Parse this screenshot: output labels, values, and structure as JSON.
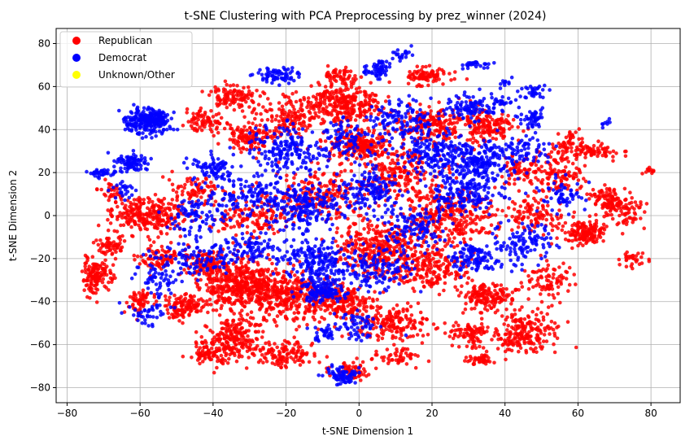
{
  "chart_data": {
    "type": "scatter",
    "title": "t-SNE Clustering with PCA Preprocessing by prez_winner (2024)",
    "xlabel": "t-SNE Dimension 1",
    "ylabel": "t-SNE Dimension 2",
    "xlim": [
      -83,
      88
    ],
    "ylim": [
      -87,
      87
    ],
    "xticks": [
      -80,
      -60,
      -40,
      -20,
      0,
      20,
      40,
      60,
      80
    ],
    "yticks": [
      -80,
      -60,
      -40,
      -20,
      0,
      20,
      40,
      60,
      80
    ],
    "grid": true,
    "legend_position": "top-left",
    "series": [
      {
        "name": "Republican",
        "color": "#ff0000",
        "clusters": [
          {
            "cx": -33,
            "cy": -32,
            "sx": 5,
            "sy": 6,
            "n": 420
          },
          {
            "cx": -35,
            "cy": -58,
            "sx": 4,
            "sy": 5,
            "n": 220
          },
          {
            "cx": -42,
            "cy": -22,
            "sx": 3,
            "sy": 3,
            "n": 120
          },
          {
            "cx": -48,
            "cy": -42,
            "sx": 3,
            "sy": 3,
            "n": 120
          },
          {
            "cx": -58,
            "cy": 0,
            "sx": 5,
            "sy": 4,
            "n": 260
          },
          {
            "cx": -72,
            "cy": -28,
            "sx": 2,
            "sy": 4,
            "n": 140
          },
          {
            "cx": -68,
            "cy": -14,
            "sx": 2,
            "sy": 2,
            "n": 60
          },
          {
            "cx": -42,
            "cy": -64,
            "sx": 2,
            "sy": 2,
            "n": 60
          },
          {
            "cx": -30,
            "cy": 36,
            "sx": 3,
            "sy": 3,
            "n": 120
          },
          {
            "cx": -34,
            "cy": 55,
            "sx": 4,
            "sy": 3,
            "n": 110
          },
          {
            "cx": -42,
            "cy": 44,
            "sx": 3,
            "sy": 3,
            "n": 80
          },
          {
            "cx": -20,
            "cy": 45,
            "sx": 4,
            "sy": 5,
            "n": 140
          },
          {
            "cx": -20,
            "cy": -38,
            "sx": 6,
            "sy": 6,
            "n": 320
          },
          {
            "cx": -20,
            "cy": -64,
            "sx": 4,
            "sy": 3,
            "n": 120
          },
          {
            "cx": -4,
            "cy": 52,
            "sx": 5,
            "sy": 5,
            "n": 300
          },
          {
            "cx": 0,
            "cy": 33,
            "sx": 4,
            "sy": 3,
            "n": 200
          },
          {
            "cx": -10,
            "cy": 10,
            "sx": 6,
            "sy": 6,
            "n": 200
          },
          {
            "cx": 5,
            "cy": -15,
            "sx": 6,
            "sy": 6,
            "n": 330
          },
          {
            "cx": -5,
            "cy": -40,
            "sx": 5,
            "sy": 4,
            "n": 200
          },
          {
            "cx": 10,
            "cy": -50,
            "sx": 5,
            "sy": 4,
            "n": 160
          },
          {
            "cx": 12,
            "cy": 20,
            "sx": 5,
            "sy": 6,
            "n": 200
          },
          {
            "cx": 18,
            "cy": 65,
            "sx": 3,
            "sy": 2,
            "n": 90
          },
          {
            "cx": 20,
            "cy": 42,
            "sx": 5,
            "sy": 5,
            "n": 200
          },
          {
            "cx": 25,
            "cy": 0,
            "sx": 6,
            "sy": 6,
            "n": 300
          },
          {
            "cx": 20,
            "cy": -25,
            "sx": 5,
            "sy": 5,
            "n": 200
          },
          {
            "cx": 35,
            "cy": -38,
            "sx": 4,
            "sy": 3,
            "n": 160
          },
          {
            "cx": 35,
            "cy": 42,
            "sx": 4,
            "sy": 4,
            "n": 150
          },
          {
            "cx": 45,
            "cy": -55,
            "sx": 5,
            "sy": 5,
            "n": 220
          },
          {
            "cx": 30,
            "cy": -55,
            "sx": 3,
            "sy": 3,
            "n": 80
          },
          {
            "cx": 33,
            "cy": -67,
            "sx": 2,
            "sy": 1,
            "n": 40
          },
          {
            "cx": 55,
            "cy": 20,
            "sx": 3,
            "sy": 5,
            "n": 110
          },
          {
            "cx": 62,
            "cy": -8,
            "sx": 3,
            "sy": 3,
            "n": 150
          },
          {
            "cx": 68,
            "cy": 8,
            "sx": 3,
            "sy": 3,
            "n": 70
          },
          {
            "cx": 72,
            "cy": 3,
            "sx": 3,
            "sy": 4,
            "n": 90
          },
          {
            "cx": 65,
            "cy": 30,
            "sx": 3,
            "sy": 2,
            "n": 60
          },
          {
            "cx": 52,
            "cy": -30,
            "sx": 3,
            "sy": 4,
            "n": 80
          },
          {
            "cx": 45,
            "cy": 20,
            "sx": 3,
            "sy": 4,
            "n": 80
          },
          {
            "cx": 75,
            "cy": -20,
            "sx": 2,
            "sy": 2,
            "n": 30
          },
          {
            "cx": 80,
            "cy": 20,
            "sx": 1,
            "sy": 1,
            "n": 12
          },
          {
            "cx": -45,
            "cy": 12,
            "sx": 3,
            "sy": 3,
            "n": 70
          },
          {
            "cx": -55,
            "cy": -20,
            "sx": 3,
            "sy": 3,
            "n": 80
          },
          {
            "cx": -60,
            "cy": -40,
            "sx": 2,
            "sy": 3,
            "n": 60
          },
          {
            "cx": -30,
            "cy": 0,
            "sx": 5,
            "sy": 5,
            "n": 140
          },
          {
            "cx": -2,
            "cy": -72,
            "sx": 3,
            "sy": 2,
            "n": 60
          },
          {
            "cx": -5,
            "cy": 65,
            "sx": 3,
            "sy": 2,
            "n": 50
          },
          {
            "cx": 48,
            "cy": 0,
            "sx": 4,
            "sy": 4,
            "n": 100
          },
          {
            "cx": 58,
            "cy": 33,
            "sx": 3,
            "sy": 3,
            "n": 60
          },
          {
            "cx": -68,
            "cy": 12,
            "sx": 2,
            "sy": 2,
            "n": 30
          },
          {
            "cx": 10,
            "cy": -65,
            "sx": 3,
            "sy": 2,
            "n": 50
          }
        ]
      },
      {
        "name": "Democrat",
        "color": "#0000ff",
        "clusters": [
          {
            "cx": -58,
            "cy": 44,
            "sx": 3,
            "sy": 3,
            "n": 260
          },
          {
            "cx": -62,
            "cy": 25,
            "sx": 2,
            "sy": 2,
            "n": 90
          },
          {
            "cx": -70,
            "cy": 20,
            "sx": 2,
            "sy": 1,
            "n": 40
          },
          {
            "cx": -40,
            "cy": 22,
            "sx": 3,
            "sy": 3,
            "n": 80
          },
          {
            "cx": -45,
            "cy": 0,
            "sx": 4,
            "sy": 5,
            "n": 90
          },
          {
            "cx": -45,
            "cy": -20,
            "sx": 5,
            "sy": 4,
            "n": 100
          },
          {
            "cx": -22,
            "cy": 65,
            "sx": 3,
            "sy": 2,
            "n": 70
          },
          {
            "cx": -20,
            "cy": 30,
            "sx": 5,
            "sy": 6,
            "n": 180
          },
          {
            "cx": -15,
            "cy": 5,
            "sx": 5,
            "sy": 5,
            "n": 190
          },
          {
            "cx": -12,
            "cy": -20,
            "sx": 5,
            "sy": 5,
            "n": 200
          },
          {
            "cx": -10,
            "cy": -35,
            "sx": 3,
            "sy": 3,
            "n": 130
          },
          {
            "cx": -5,
            "cy": -75,
            "sx": 2,
            "sy": 2,
            "n": 80
          },
          {
            "cx": 3,
            "cy": 12,
            "sx": 4,
            "sy": 5,
            "n": 150
          },
          {
            "cx": 5,
            "cy": 68,
            "sx": 2,
            "sy": 2,
            "n": 60
          },
          {
            "cx": 12,
            "cy": 45,
            "sx": 4,
            "sy": 4,
            "n": 110
          },
          {
            "cx": 20,
            "cy": 30,
            "sx": 5,
            "sy": 5,
            "n": 160
          },
          {
            "cx": 32,
            "cy": 25,
            "sx": 5,
            "sy": 5,
            "n": 220
          },
          {
            "cx": 30,
            "cy": 10,
            "sx": 5,
            "sy": 5,
            "n": 160
          },
          {
            "cx": 32,
            "cy": -20,
            "sx": 4,
            "sy": 4,
            "n": 120
          },
          {
            "cx": 45,
            "cy": -12,
            "sx": 4,
            "sy": 5,
            "n": 100
          },
          {
            "cx": 30,
            "cy": 50,
            "sx": 3,
            "sy": 3,
            "n": 90
          },
          {
            "cx": 32,
            "cy": 70,
            "sx": 2,
            "sy": 1,
            "n": 30
          },
          {
            "cx": 48,
            "cy": 45,
            "sx": 2,
            "sy": 3,
            "n": 50
          },
          {
            "cx": 48,
            "cy": 58,
            "sx": 2,
            "sy": 2,
            "n": 30
          },
          {
            "cx": 38,
            "cy": 52,
            "sx": 2,
            "sy": 2,
            "n": 30
          },
          {
            "cx": 5,
            "cy": -25,
            "sx": 5,
            "sy": 5,
            "n": 130
          },
          {
            "cx": -30,
            "cy": 10,
            "sx": 5,
            "sy": 5,
            "n": 120
          },
          {
            "cx": -30,
            "cy": -15,
            "sx": 4,
            "sy": 4,
            "n": 90
          },
          {
            "cx": -3,
            "cy": 35,
            "sx": 4,
            "sy": 4,
            "n": 90
          },
          {
            "cx": 15,
            "cy": -5,
            "sx": 5,
            "sy": 5,
            "n": 120
          },
          {
            "cx": 45,
            "cy": 30,
            "sx": 3,
            "sy": 3,
            "n": 60
          },
          {
            "cx": 56,
            "cy": 10,
            "sx": 3,
            "sy": 4,
            "n": 60
          },
          {
            "cx": -55,
            "cy": -30,
            "sx": 3,
            "sy": 4,
            "n": 60
          },
          {
            "cx": -58,
            "cy": -45,
            "sx": 3,
            "sy": 3,
            "n": 40
          },
          {
            "cx": 0,
            "cy": -52,
            "sx": 3,
            "sy": 4,
            "n": 60
          },
          {
            "cx": 12,
            "cy": 75,
            "sx": 2,
            "sy": 2,
            "n": 20
          },
          {
            "cx": 68,
            "cy": 43,
            "sx": 1,
            "sy": 1,
            "n": 8
          },
          {
            "cx": 40,
            "cy": 62,
            "sx": 1,
            "sy": 1,
            "n": 10
          },
          {
            "cx": -65,
            "cy": 12,
            "sx": 2,
            "sy": 2,
            "n": 25
          },
          {
            "cx": -10,
            "cy": -55,
            "sx": 2,
            "sy": 2,
            "n": 30
          }
        ]
      },
      {
        "name": "Unknown/Other",
        "color": "#ffff00",
        "clusters": []
      }
    ]
  }
}
